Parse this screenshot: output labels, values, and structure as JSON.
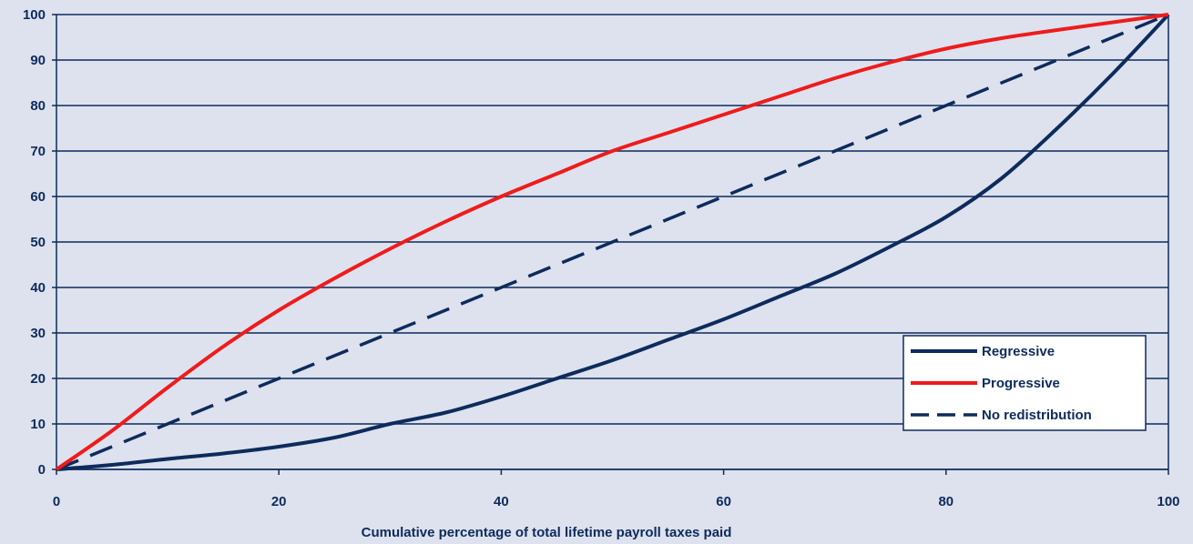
{
  "chart_data": {
    "type": "line",
    "title": "",
    "xlabel": "Cumulative percentage of total lifetime payroll taxes paid",
    "ylabel": "",
    "xlim": [
      0,
      100
    ],
    "ylim": [
      0,
      100
    ],
    "xticks": [
      0,
      20,
      40,
      60,
      80,
      100
    ],
    "yticks": [
      0,
      10,
      20,
      30,
      40,
      50,
      60,
      70,
      80,
      90,
      100
    ],
    "grid": "horizontal",
    "legend_position": "bottom-right",
    "series": [
      {
        "name": "Regressive",
        "color": "#0d2b5c",
        "style": "solid",
        "x": [
          0,
          5,
          10,
          15,
          20,
          25,
          30,
          35,
          40,
          45,
          50,
          55,
          60,
          65,
          70,
          75,
          80,
          85,
          90,
          95,
          100
        ],
        "y": [
          0,
          1,
          2.3,
          3.5,
          5,
          7,
          10,
          12.5,
          16,
          20,
          24,
          28.5,
          33,
          38,
          43,
          49,
          55.5,
          64,
          75,
          87,
          100
        ]
      },
      {
        "name": "Progressive",
        "color": "#ee1c1c",
        "style": "solid",
        "x": [
          0,
          5,
          10,
          15,
          20,
          25,
          30,
          35,
          40,
          45,
          50,
          55,
          60,
          65,
          70,
          75,
          80,
          85,
          90,
          95,
          100
        ],
        "y": [
          0,
          8.5,
          18,
          27,
          35,
          42,
          48.5,
          54.5,
          60,
          65,
          70,
          74,
          78,
          82,
          86,
          89.5,
          92.5,
          94.8,
          96.6,
          98.3,
          100
        ]
      },
      {
        "name": "No redistribution",
        "color": "#0d2b5c",
        "style": "dashed",
        "x": [
          0,
          100
        ],
        "y": [
          0,
          100
        ]
      }
    ]
  }
}
